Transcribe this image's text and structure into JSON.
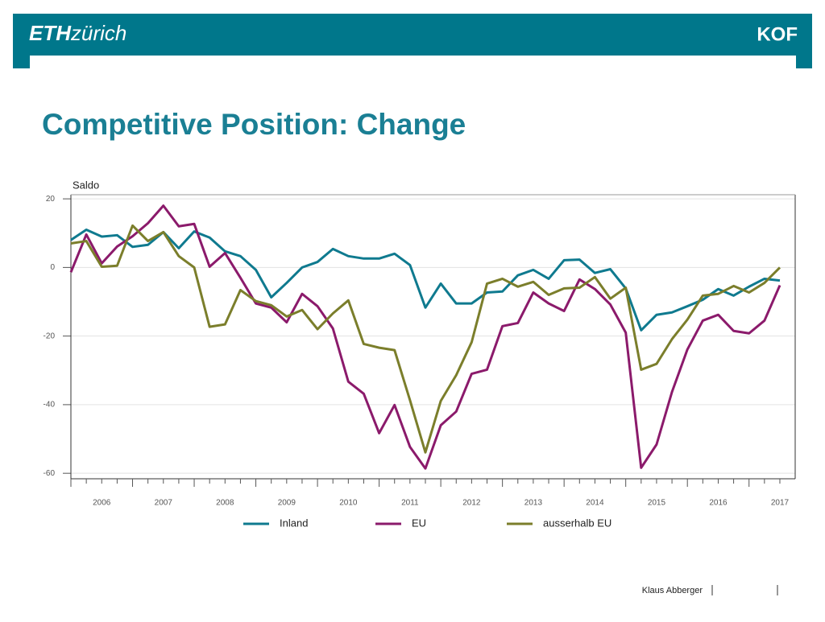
{
  "header": {
    "logo_bold": "ETH",
    "logo_rest": "zürich",
    "brand": "KOF"
  },
  "chart_data": {
    "type": "line",
    "title": "Competitive Position: Change",
    "ylabel": "Saldo",
    "categories": [
      null,
      null,
      "2006",
      null,
      null,
      null,
      "2007",
      null,
      null,
      null,
      "2008",
      null,
      null,
      null,
      "2009",
      null,
      null,
      null,
      "2010",
      null,
      null,
      null,
      "2011",
      null,
      null,
      null,
      "2012",
      null,
      null,
      null,
      "2013",
      null,
      null,
      null,
      "2014",
      null,
      null,
      null,
      "2015",
      null,
      null,
      null,
      "2016",
      null,
      null,
      null,
      "2017"
    ],
    "series": [
      {
        "name": "Inland",
        "color": "#0f7a8f",
        "values": [
          8,
          11,
          9,
          9.4,
          6,
          6.6,
          10.3,
          5.6,
          10.5,
          8.7,
          4.7,
          3.3,
          -0.7,
          -8.7,
          -4.5,
          0,
          1.6,
          5.4,
          3.3,
          2.6,
          2.6,
          4,
          0.7,
          -11.7,
          -4.7,
          -10.5,
          -10.5,
          -7.3,
          -7,
          -2.3,
          -0.7,
          -3.3,
          2.1,
          2.3,
          -1.6,
          -0.5,
          -6.1,
          -18.3,
          -13.8,
          -13.1,
          -11.3,
          -9.4,
          -6.3,
          -8.2,
          -5.6,
          -3.3,
          -3.8
        ]
      },
      {
        "name": "EU",
        "color": "#8b1a6b",
        "values": [
          -1.4,
          9.6,
          1.2,
          6.1,
          9.1,
          12.9,
          18,
          12,
          12.7,
          0.2,
          4.2,
          -3,
          -10.5,
          -11.7,
          -16,
          -7.7,
          -11.3,
          -17.8,
          -33.3,
          -36.8,
          -48.3,
          -40.1,
          -52.3,
          -58.6,
          -46,
          -42,
          -31,
          -29.8,
          -17.1,
          -16.2,
          -7.3,
          -10.5,
          -12.7,
          -3.5,
          -6.3,
          -10.8,
          -19,
          -58.4,
          -51.6,
          -36.3,
          -23.9,
          -15.5,
          -13.8,
          -18.5,
          -19.2,
          -15.5,
          -5.2
        ]
      },
      {
        "name": "ausserhalb EU",
        "color": "#7b7e2b",
        "values": [
          7,
          7.7,
          0.2,
          0.5,
          12.2,
          7.7,
          10.3,
          3.3,
          0,
          -17.3,
          -16.6,
          -6.6,
          -9.8,
          -11,
          -14.3,
          -12.4,
          -18,
          -13.4,
          -9.6,
          -22.3,
          -23.4,
          -24.1,
          -38.7,
          -53.9,
          -38.9,
          -31.4,
          -21.8,
          -4.7,
          -3.3,
          -5.6,
          -4.2,
          -8,
          -6.1,
          -5.9,
          -2.8,
          -9.1,
          -5.9,
          -29.8,
          -28.1,
          -20.9,
          -15.2,
          -8.2,
          -7.7,
          -5.4,
          -7.3,
          -4.5,
          0
        ]
      }
    ],
    "ylim": [
      -61.6,
      21.2
    ],
    "yticks": [
      -60,
      -40,
      -20,
      0,
      20
    ],
    "grid": true,
    "legend": "bottom"
  },
  "footer": {
    "author": "Klaus Abberger"
  }
}
